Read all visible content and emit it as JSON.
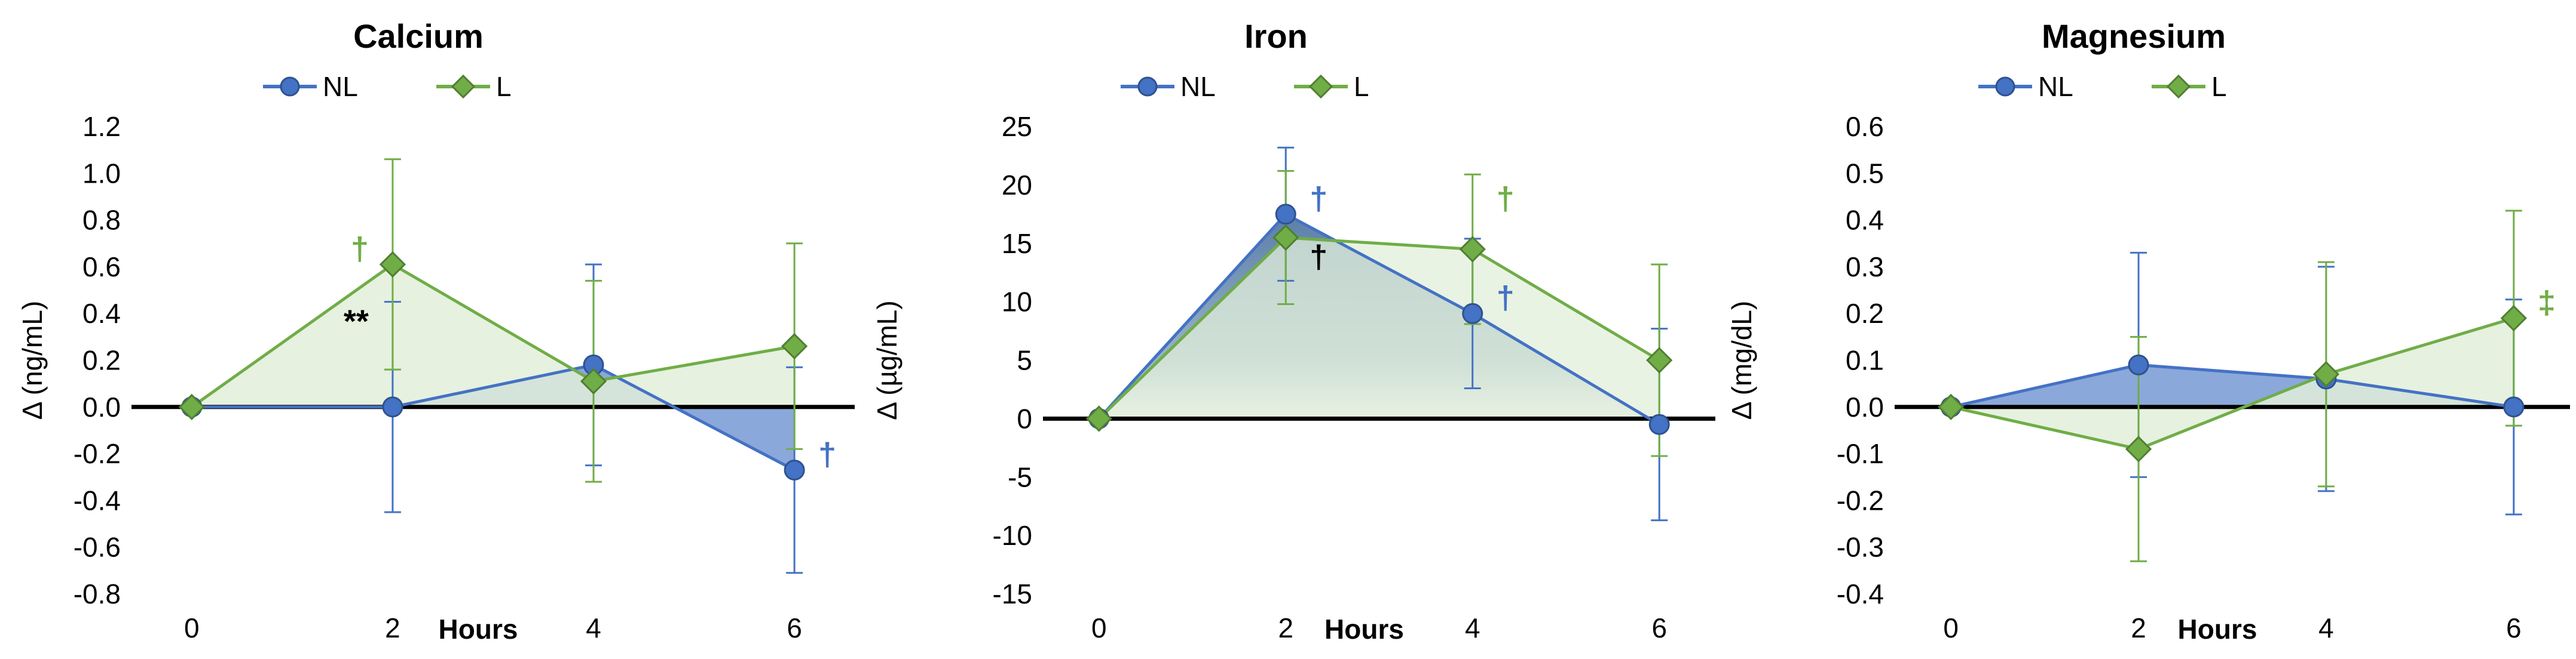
{
  "chart_data": [
    {
      "type": "line",
      "title": "Calcium",
      "xlabel": "Hours",
      "ylabel": "Δ (ng/mL)",
      "x": [
        0,
        2,
        4,
        6
      ],
      "xlim": [
        -0.6,
        6.6
      ],
      "ylim": [
        -0.8,
        1.2
      ],
      "ytick_step": 0.2,
      "ytick_decimals": 1,
      "legend_position": "top-center",
      "series": [
        {
          "name": "NL",
          "marker": "circle",
          "color": "#4472C4",
          "fill": "#4472C4",
          "values": [
            0,
            0,
            0.18,
            -0.27
          ],
          "err": [
            0,
            0.45,
            0.43,
            0.44
          ]
        },
        {
          "name": "L",
          "marker": "diamond",
          "color": "#70AD47",
          "fill": "#70AD47",
          "values": [
            0,
            0.61,
            0.11,
            0.26
          ],
          "err": [
            0,
            0.45,
            0.43,
            0.44
          ]
        }
      ],
      "annotations": [
        {
          "text": "†",
          "x": 2,
          "y": 0.61,
          "color": "#70AD47",
          "side": "left"
        },
        {
          "text": "**",
          "x": 2,
          "y": 0.3,
          "color": "#000000",
          "side": "left"
        },
        {
          "text": "†",
          "x": 6,
          "y": -0.27,
          "color": "#4472C4",
          "side": "right"
        }
      ]
    },
    {
      "type": "line",
      "title": "Iron",
      "xlabel": "Hours",
      "ylabel": "Δ (µg/mL)",
      "x": [
        0,
        2,
        4,
        6
      ],
      "xlim": [
        -0.6,
        6.6
      ],
      "ylim": [
        -15,
        25
      ],
      "ytick_step": 5,
      "ytick_decimals": 0,
      "legend_position": "top-center",
      "series": [
        {
          "name": "NL",
          "marker": "circle",
          "color": "#4472C4",
          "fill": "#4472C4",
          "values": [
            0,
            17.5,
            9,
            -0.5
          ],
          "err": [
            0,
            5.7,
            6.4,
            8.2
          ]
        },
        {
          "name": "L",
          "marker": "diamond",
          "color": "#70AD47",
          "fill": "#70AD47",
          "values": [
            0,
            15.5,
            14.5,
            5
          ],
          "err": [
            0,
            5.7,
            6.4,
            8.2
          ]
        }
      ],
      "annotations": [
        {
          "text": "†",
          "x": 2,
          "y": 17.5,
          "color": "#4472C4",
          "side": "right"
        },
        {
          "text": "†",
          "x": 2,
          "y": 12.5,
          "color": "#000000",
          "side": "right"
        },
        {
          "text": "†",
          "x": 4,
          "y": 17.5,
          "color": "#70AD47",
          "side": "right"
        },
        {
          "text": "†",
          "x": 4,
          "y": 9,
          "color": "#4472C4",
          "side": "right"
        }
      ]
    },
    {
      "type": "line",
      "title": "Magnesium",
      "xlabel": "Hours",
      "ylabel": "Δ (mg/dL)",
      "x": [
        0,
        2,
        4,
        6
      ],
      "xlim": [
        -0.6,
        6.6
      ],
      "ylim": [
        -0.4,
        0.6
      ],
      "ytick_step": 0.1,
      "ytick_decimals": 1,
      "legend_position": "top-center",
      "series": [
        {
          "name": "NL",
          "marker": "circle",
          "color": "#4472C4",
          "fill": "#4472C4",
          "values": [
            0,
            0.09,
            0.06,
            0.0
          ],
          "err": [
            0,
            0.24,
            0.24,
            0.23
          ]
        },
        {
          "name": "L",
          "marker": "diamond",
          "color": "#70AD47",
          "fill": "#70AD47",
          "values": [
            0,
            -0.09,
            0.07,
            0.19
          ],
          "err": [
            0,
            0.24,
            0.24,
            0.23
          ]
        }
      ],
      "annotations": [
        {
          "text": "‡",
          "x": 6,
          "y": 0.19,
          "color": "#70AD47",
          "side": "right"
        }
      ]
    }
  ]
}
